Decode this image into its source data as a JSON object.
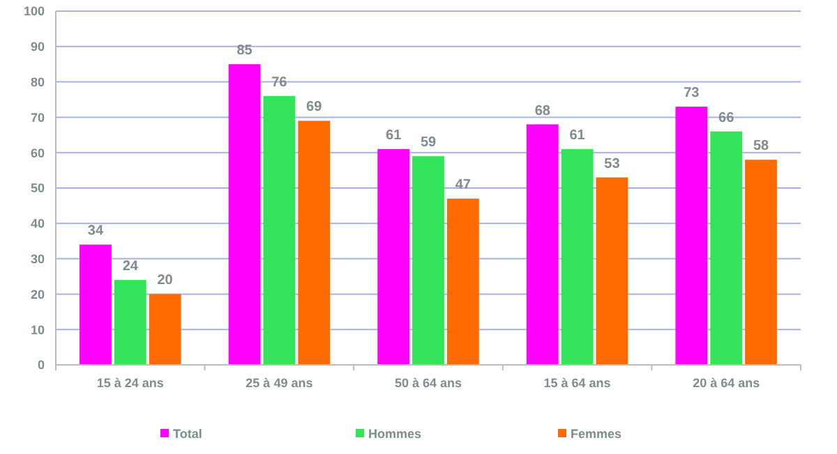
{
  "chart_data": {
    "type": "bar",
    "categories": [
      "15 à 24 ans",
      "25 à 49 ans",
      "50 à 64 ans",
      "15 à 64 ans",
      "20 à 64 ans"
    ],
    "series": [
      {
        "name": "Total",
        "color": "#ff00ff",
        "values": [
          34,
          85,
          61,
          68,
          73
        ]
      },
      {
        "name": "Hommes",
        "color": "#33e35a",
        "values": [
          24,
          76,
          59,
          61,
          66
        ]
      },
      {
        "name": "Femmes",
        "color": "#ff6a00",
        "values": [
          20,
          69,
          47,
          53,
          58
        ]
      }
    ],
    "ylim": [
      0,
      100
    ],
    "yticks": [
      0,
      10,
      20,
      30,
      40,
      50,
      60,
      70,
      80,
      90,
      100
    ],
    "grid": "y",
    "legend": "bottom",
    "data_labels": true
  }
}
